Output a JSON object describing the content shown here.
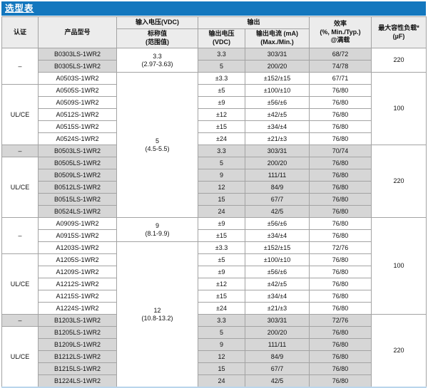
{
  "title": "选型表",
  "colors": {
    "title_bar_blue": "#1377be",
    "header_gray": "#ececec",
    "shaded_row_gray": "#d6d6d6",
    "border_gray": "#a3a3a3",
    "bottom_edge_blue": "#b9d5ec"
  },
  "header": {
    "cert": "认证",
    "model": "产品型号",
    "input_voltage": "输入电压(VDC)",
    "input_sub": "标称值\n(范围值)",
    "output": "输出",
    "output_voltage": "输出电压\n(VDC)",
    "output_current": "输出电流 (mA)\n(Max./Min.)",
    "efficiency": "效率\n(%, Min./Typ.)\n@满载",
    "max_cap_load": "最大容性负载*\n(µF)"
  },
  "cert_groups": [
    {
      "label": "–",
      "start": 0,
      "span": 3,
      "shaded": false
    },
    {
      "label": "UL/CE",
      "start": 3,
      "span": 5,
      "shaded": false
    },
    {
      "label": "–",
      "start": 8,
      "span": 1,
      "shaded": true
    },
    {
      "label": "UL/CE",
      "start": 9,
      "span": 5,
      "shaded": false
    },
    {
      "label": "–",
      "start": 14,
      "span": 3,
      "shaded": false
    },
    {
      "label": "UL/CE",
      "start": 17,
      "span": 5,
      "shaded": false
    },
    {
      "label": "–",
      "start": 22,
      "span": 1,
      "shaded": true
    },
    {
      "label": "UL/CE",
      "start": 23,
      "span": 5,
      "shaded": false
    }
  ],
  "input_groups": [
    {
      "nominal": "3.3",
      "range": "(2.97-3.63)",
      "start": 0,
      "span": 2
    },
    {
      "nominal": "5",
      "range": "(4.5-5.5)",
      "start": 2,
      "span": 12
    },
    {
      "nominal": "9",
      "range": "(8.1-9.9)",
      "start": 14,
      "span": 2
    },
    {
      "nominal": "12",
      "range": "(10.8-13.2)",
      "start": 16,
      "span": 12
    }
  ],
  "cap_groups": [
    {
      "value": "220",
      "start": 0,
      "span": 2
    },
    {
      "value": "100",
      "start": 2,
      "span": 6
    },
    {
      "value": "220",
      "start": 8,
      "span": 6
    },
    {
      "value": "100",
      "start": 14,
      "span": 8
    },
    {
      "value": "220",
      "start": 22,
      "span": 6
    }
  ],
  "rows": [
    {
      "model": "B0303LS-1WR2",
      "vout": "3.3",
      "iout": "303/31",
      "eff": "68/72",
      "shaded": true
    },
    {
      "model": "B0305LS-1WR2",
      "vout": "5",
      "iout": "200/20",
      "eff": "74/78",
      "shaded": true
    },
    {
      "model": "A0503S-1WR2",
      "vout": "±3.3",
      "iout": "±152/±15",
      "eff": "67/71",
      "shaded": false
    },
    {
      "model": "A0505S-1WR2",
      "vout": "±5",
      "iout": "±100/±10",
      "eff": "76/80",
      "shaded": false
    },
    {
      "model": "A0509S-1WR2",
      "vout": "±9",
      "iout": "±56/±6",
      "eff": "76/80",
      "shaded": false
    },
    {
      "model": "A0512S-1WR2",
      "vout": "±12",
      "iout": "±42/±5",
      "eff": "76/80",
      "shaded": false
    },
    {
      "model": "A0515S-1WR2",
      "vout": "±15",
      "iout": "±34/±4",
      "eff": "76/80",
      "shaded": false
    },
    {
      "model": "A0524S-1WR2",
      "vout": "±24",
      "iout": "±21/±3",
      "eff": "76/80",
      "shaded": false
    },
    {
      "model": "B0503LS-1WR2",
      "vout": "3.3",
      "iout": "303/31",
      "eff": "70/74",
      "shaded": true
    },
    {
      "model": "B0505LS-1WR2",
      "vout": "5",
      "iout": "200/20",
      "eff": "76/80",
      "shaded": true
    },
    {
      "model": "B0509LS-1WR2",
      "vout": "9",
      "iout": "111/11",
      "eff": "76/80",
      "shaded": true
    },
    {
      "model": "B0512LS-1WR2",
      "vout": "12",
      "iout": "84/9",
      "eff": "76/80",
      "shaded": true
    },
    {
      "model": "B0515LS-1WR2",
      "vout": "15",
      "iout": "67/7",
      "eff": "76/80",
      "shaded": true
    },
    {
      "model": "B0524LS-1WR2",
      "vout": "24",
      "iout": "42/5",
      "eff": "76/80",
      "shaded": true
    },
    {
      "model": "A0909S-1WR2",
      "vout": "±9",
      "iout": "±56/±6",
      "eff": "76/80",
      "shaded": false
    },
    {
      "model": "A0915S-1WR2",
      "vout": "±15",
      "iout": "±34/±4",
      "eff": "76/80",
      "shaded": false
    },
    {
      "model": "A1203S-1WR2",
      "vout": "±3.3",
      "iout": "±152/±15",
      "eff": "72/76",
      "shaded": false
    },
    {
      "model": "A1205S-1WR2",
      "vout": "±5",
      "iout": "±100/±10",
      "eff": "76/80",
      "shaded": false
    },
    {
      "model": "A1209S-1WR2",
      "vout": "±9",
      "iout": "±56/±6",
      "eff": "76/80",
      "shaded": false
    },
    {
      "model": "A1212S-1WR2",
      "vout": "±12",
      "iout": "±42/±5",
      "eff": "76/80",
      "shaded": false
    },
    {
      "model": "A1215S-1WR2",
      "vout": "±15",
      "iout": "±34/±4",
      "eff": "76/80",
      "shaded": false
    },
    {
      "model": "A1224S-1WR2",
      "vout": "±24",
      "iout": "±21/±3",
      "eff": "76/80",
      "shaded": false
    },
    {
      "model": "B1203LS-1WR2",
      "vout": "3.3",
      "iout": "303/31",
      "eff": "72/76",
      "shaded": true
    },
    {
      "model": "B1205LS-1WR2",
      "vout": "5",
      "iout": "200/20",
      "eff": "76/80",
      "shaded": true
    },
    {
      "model": "B1209LS-1WR2",
      "vout": "9",
      "iout": "111/11",
      "eff": "76/80",
      "shaded": true
    },
    {
      "model": "B1212LS-1WR2",
      "vout": "12",
      "iout": "84/9",
      "eff": "76/80",
      "shaded": true
    },
    {
      "model": "B1215LS-1WR2",
      "vout": "15",
      "iout": "67/7",
      "eff": "76/80",
      "shaded": true
    },
    {
      "model": "B1224LS-1WR2",
      "vout": "24",
      "iout": "42/5",
      "eff": "76/80",
      "shaded": true
    }
  ]
}
